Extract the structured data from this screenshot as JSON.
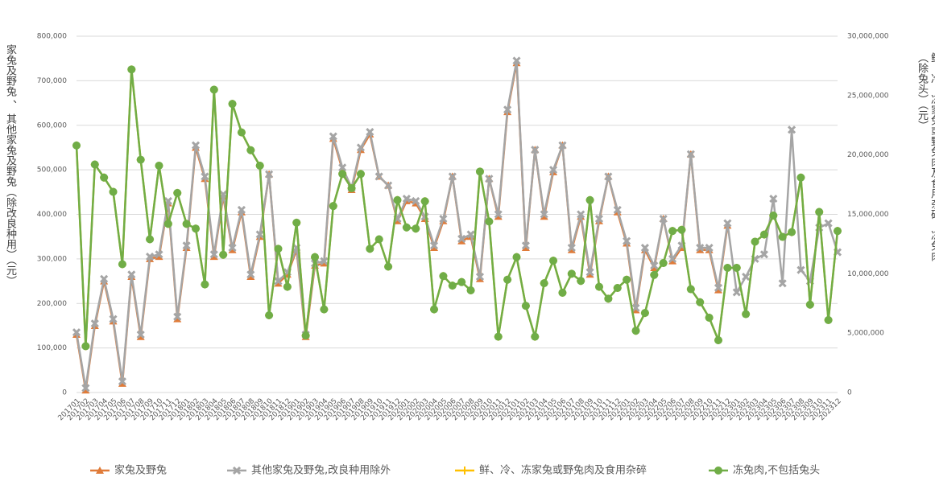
{
  "chart_data": {
    "type": "line",
    "y_label": "家兔及野兔 、 其他家兔及野兔（除改良种用）（元）",
    "y2_label": "鲜、冷、冻家兔或野兔肉及食用杂碎、冻兔肉（除兔头）（元）",
    "categories": [
      "201701",
      "201702",
      "201703",
      "201704",
      "201705",
      "201706",
      "201707",
      "201708",
      "201709",
      "201710",
      "201711",
      "201712",
      "201801",
      "201802",
      "201803",
      "201804",
      "201805",
      "201806",
      "201807",
      "201808",
      "201809",
      "201810",
      "201811",
      "201812",
      "201901",
      "201902",
      "201903",
      "201904",
      "201905",
      "201906",
      "201907",
      "201908",
      "201909",
      "201910",
      "201911",
      "201912",
      "202001",
      "202002",
      "202003",
      "202004",
      "202005",
      "202006",
      "202007",
      "202008",
      "202009",
      "202010",
      "202011",
      "202012",
      "202101",
      "202102",
      "202103",
      "202104",
      "202105",
      "202106",
      "202107",
      "202108",
      "202109",
      "202110",
      "202111",
      "202112",
      "202201",
      "202202",
      "202203",
      "202204",
      "202205",
      "202206",
      "202207",
      "202208",
      "202209",
      "202210",
      "202211",
      "202212",
      "202301",
      "202302",
      "202303",
      "202304",
      "202305",
      "202306",
      "202307",
      "202308",
      "202309",
      "202310",
      "202311",
      "202312"
    ],
    "series": [
      {
        "name": "家兔及野兔",
        "color": "#e07b39",
        "marker": "triangle",
        "axis": "y",
        "values": [
          130000,
          5000,
          150000,
          250000,
          160000,
          20000,
          260000,
          125000,
          300000,
          305000,
          425000,
          165000,
          325000,
          550000,
          480000,
          305000,
          440000,
          320000,
          405000,
          260000,
          350000,
          490000,
          245000,
          265000,
          320000,
          125000,
          285000,
          290000,
          570000,
          500000,
          455000,
          545000,
          580000,
          485000,
          465000,
          385000,
          430000,
          425000,
          390000,
          325000,
          385000,
          485000,
          340000,
          350000,
          255000,
          480000,
          395000,
          630000,
          740000,
          325000,
          545000,
          395000,
          495000,
          555000,
          320000,
          395000,
          265000,
          385000,
          485000,
          405000,
          335000,
          185000,
          320000,
          280000,
          390000,
          295000,
          325000,
          535000,
          320000,
          320000,
          230000,
          375000,
          null,
          null,
          null,
          null,
          null,
          null,
          null,
          null,
          null,
          null,
          null,
          null
        ]
      },
      {
        "name": "其他家兔及野兔,改良种用除外",
        "color": "#a5a5a5",
        "marker": "x",
        "axis": "y",
        "values": [
          135000,
          10000,
          155000,
          255000,
          165000,
          25000,
          265000,
          130000,
          305000,
          310000,
          430000,
          170000,
          330000,
          555000,
          485000,
          310000,
          445000,
          325000,
          410000,
          265000,
          355000,
          490000,
          250000,
          270000,
          325000,
          130000,
          290000,
          295000,
          575000,
          505000,
          460000,
          550000,
          585000,
          485000,
          465000,
          390000,
          435000,
          430000,
          395000,
          330000,
          390000,
          485000,
          345000,
          355000,
          260000,
          480000,
          400000,
          635000,
          745000,
          330000,
          545000,
          400000,
          500000,
          555000,
          325000,
          400000,
          270000,
          390000,
          485000,
          410000,
          340000,
          190000,
          325000,
          285000,
          390000,
          300000,
          330000,
          535000,
          325000,
          325000,
          235000,
          380000,
          225000,
          260000,
          300000,
          310000,
          435000,
          245000,
          590000,
          275000,
          250000,
          370000,
          380000,
          315000
        ]
      },
      {
        "name": "鲜、冷、冻家兔或野兔肉及食用杂碎",
        "color": "#ffc000",
        "marker": "plus",
        "axis": "y2",
        "values": [
          20800000,
          3900000,
          19200000,
          18100000,
          16900000,
          10800000,
          27200000,
          19600000,
          12900000,
          19100000,
          14200000,
          16800000,
          14200000,
          13800000,
          9100000,
          25500000,
          11600000,
          24300000,
          21900000,
          20400000,
          19100000,
          6500000,
          12100000,
          8900000,
          14300000,
          4800000,
          11400000,
          7000000,
          15700000,
          18400000,
          17200000,
          18400000,
          12100000,
          12900000,
          10600000,
          16200000,
          13900000,
          13800000,
          16100000,
          7000000,
          9800000,
          9000000,
          9300000,
          8600000,
          18600000,
          14400000,
          4700000,
          9500000,
          11400000,
          7300000,
          4700000,
          9200000,
          11100000,
          8400000,
          10000000,
          9400000,
          16200000,
          8900000,
          7900000,
          8800000,
          9500000,
          5200000,
          6700000,
          9900000,
          10900000,
          13600000,
          13700000,
          8700000,
          7600000,
          6300000,
          4400000,
          10500000,
          10500000,
          6600000,
          12700000,
          13300000,
          14900000,
          13100000,
          13500000,
          18100000,
          7400000,
          15200000,
          6100000,
          13600000
        ]
      },
      {
        "name": "冻兔肉,不包括兔头",
        "color": "#70ad47",
        "marker": "circle",
        "axis": "y2",
        "values": [
          20800000,
          3900000,
          19200000,
          18100000,
          16900000,
          10800000,
          27200000,
          19600000,
          12900000,
          19100000,
          14200000,
          16800000,
          14200000,
          13800000,
          9100000,
          25500000,
          11600000,
          24300000,
          21900000,
          20400000,
          19100000,
          6500000,
          12100000,
          8900000,
          14300000,
          4800000,
          11400000,
          7000000,
          15700000,
          18400000,
          17200000,
          18400000,
          12100000,
          12900000,
          10600000,
          16200000,
          13900000,
          13800000,
          16100000,
          7000000,
          9800000,
          9000000,
          9300000,
          8600000,
          18600000,
          14400000,
          4700000,
          9500000,
          11400000,
          7300000,
          4700000,
          9200000,
          11100000,
          8400000,
          10000000,
          9400000,
          16200000,
          8900000,
          7900000,
          8800000,
          9500000,
          5200000,
          6700000,
          9900000,
          10900000,
          13600000,
          13700000,
          8700000,
          7600000,
          6300000,
          4400000,
          10500000,
          10500000,
          6600000,
          12700000,
          13300000,
          14900000,
          13100000,
          13500000,
          18100000,
          7400000,
          15200000,
          6100000,
          13600000
        ]
      }
    ],
    "ylim": [
      0,
      800000
    ],
    "yticks": [
      0,
      {
        "value": 100000,
        "label": "100,000"
      },
      {
        "value": 200000,
        "label": "200,000"
      },
      {
        "value": 300000,
        "label": "300,000"
      },
      {
        "value": 400000,
        "label": "400,000"
      },
      {
        "value": 500000,
        "label": "500,000"
      },
      {
        "value": 600000,
        "label": "600,000"
      },
      {
        "value": 700000,
        "label": "700,000"
      },
      {
        "value": 800000,
        "label": "800,000"
      }
    ],
    "y2lim": [
      0,
      30000000
    ],
    "y2ticks": [
      0,
      {
        "value": 5000000,
        "label": "5,000,000"
      },
      {
        "value": 10000000,
        "label": "10,000,000"
      },
      {
        "value": 15000000,
        "label": "15,000,000"
      },
      {
        "value": 20000000,
        "label": "20,000,000"
      },
      {
        "value": 25000000,
        "label": "25,000,000"
      },
      {
        "value": 30000000,
        "label": "30,000,000"
      }
    ],
    "grid": true,
    "legend": "bottom"
  }
}
